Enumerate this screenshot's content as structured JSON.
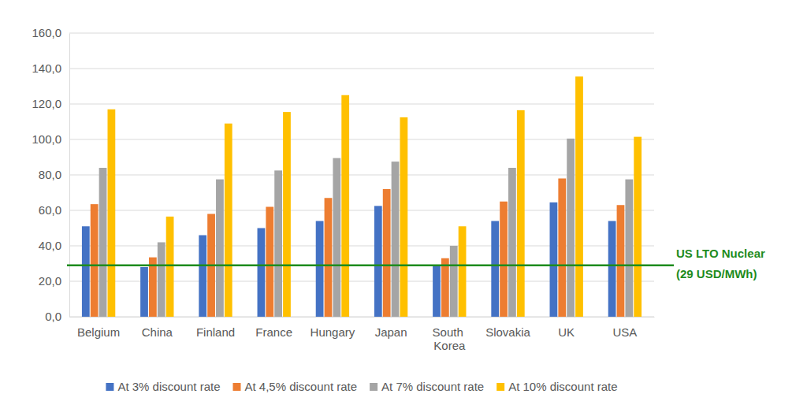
{
  "chart_data": {
    "type": "bar",
    "categories": [
      "Belgium",
      "China",
      "Finland",
      "France",
      "Hungary",
      "Japan",
      "South Korea",
      "Slovakia",
      "UK",
      "USA"
    ],
    "series": [
      {
        "name": "At 3% discount rate",
        "color": "#4472c4",
        "values": [
          51,
          28,
          46,
          50,
          54,
          62.5,
          28.5,
          54,
          64.5,
          54
        ]
      },
      {
        "name": "At 4,5% discount rate",
        "color": "#ed7d31",
        "values": [
          63.5,
          33.5,
          58,
          62,
          67,
          72,
          33,
          65,
          78,
          63
        ]
      },
      {
        "name": "At 7% discount rate",
        "color": "#a5a5a5",
        "values": [
          84,
          42,
          77.5,
          82.5,
          89.5,
          87.5,
          40,
          84,
          100.5,
          77.5
        ]
      },
      {
        "name": "At 10% discount rate",
        "color": "#ffc000",
        "values": [
          117,
          56.5,
          109,
          115.5,
          125,
          112.5,
          51,
          116.5,
          135.5,
          101.5
        ]
      }
    ],
    "ylim": [
      0,
      160
    ],
    "yticks": [
      {
        "value": 0,
        "label": "0,0"
      },
      {
        "value": 20,
        "label": "20,0"
      },
      {
        "value": 40,
        "label": "40,0"
      },
      {
        "value": 60,
        "label": "60,0"
      },
      {
        "value": 80,
        "label": "80,0"
      },
      {
        "value": 100,
        "label": "100,0"
      },
      {
        "value": 120,
        "label": "120,0"
      },
      {
        "value": 140,
        "label": "140,0"
      },
      {
        "value": 160,
        "label": "160,0"
      }
    ],
    "grid": true,
    "legend": "bottom",
    "reference_line": {
      "value": 29,
      "label": "US LTO Nuclear",
      "value_label": "(29 USD/MWh)",
      "color": "#1e8c1e"
    }
  }
}
